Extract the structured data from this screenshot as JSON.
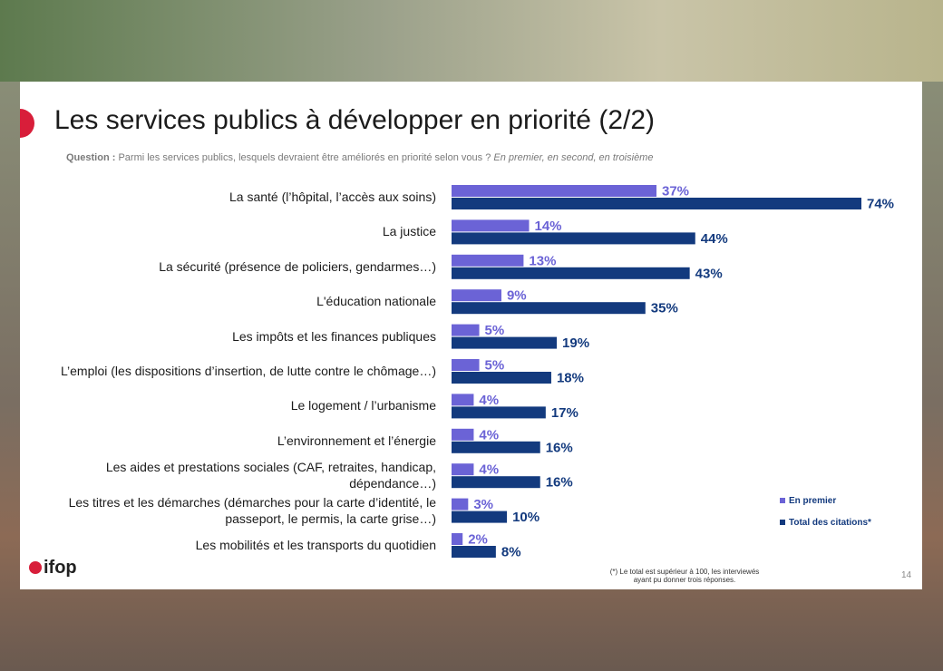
{
  "header": {
    "title": "Les services publics à développer en priorité (2/2)",
    "question_label": "Question :",
    "question_text": "Parmi les services publics, lesquels devraient être améliorés en priorité selon vous ?",
    "question_note": "En premier, en second, en troisième"
  },
  "chart_data": {
    "type": "bar",
    "orientation": "horizontal",
    "categories": [
      "La santé (l’hôpital, l’accès aux soins)",
      "La justice",
      "La sécurité (présence de policiers, gendarmes…)",
      "L'éducation nationale",
      "Les impôts et les finances publiques",
      "L’emploi (les dispositions d’insertion, de lutte contre le chômage…)",
      "Le logement / l’urbanisme",
      "L’environnement et l’énergie",
      "Les aides et prestations sociales (CAF, retraites, handicap, dépendance…)",
      "Les titres et les démarches (démarches pour la carte d’identité, le passeport, le permis, la carte grise…)",
      "Les mobilités et les transports du quotidien"
    ],
    "series": [
      {
        "name": "En premier",
        "color": "#6b63d6",
        "values": [
          37,
          14,
          13,
          9,
          5,
          5,
          4,
          4,
          4,
          3,
          2
        ],
        "value_labels": [
          "37%",
          "14%",
          "13%",
          "9%",
          "5%",
          "5%",
          "4%",
          "4%",
          "4%",
          "3%",
          "2%"
        ]
      },
      {
        "name": "Total des citations*",
        "color": "#133a7e",
        "values": [
          74,
          44,
          43,
          35,
          19,
          18,
          17,
          16,
          16,
          10,
          8
        ],
        "value_labels": [
          "74%",
          "44%",
          "43%",
          "35%",
          "19%",
          "18%",
          "17%",
          "16%",
          "16%",
          "10%",
          "8%"
        ]
      }
    ],
    "legend": "bottom-right"
  },
  "footer": {
    "note": "(*) Le total est supérieur à 100, les interviewés ayant pu donner trois réponses.",
    "page": "14",
    "logo": "ifop"
  }
}
